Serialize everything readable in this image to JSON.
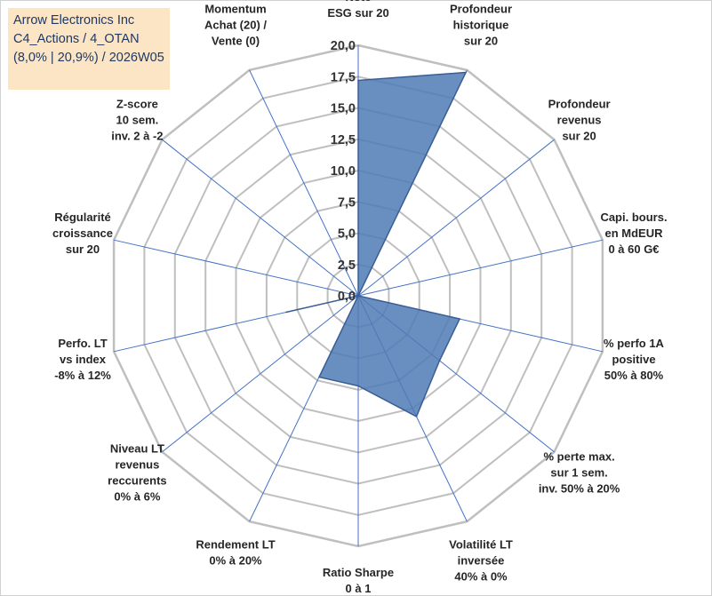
{
  "header": {
    "line1": "Arrow Electronics Inc",
    "line2": "C4_Actions / 4_OTAN",
    "line3": "(8,0% | 20,9%) / 2026W05"
  },
  "colors": {
    "grid": "#bfbfbf",
    "spoke": "#4472c4",
    "fill": "#4f7ab5",
    "fill_stroke": "#3a5e94",
    "title_bg": "#fbe5c4",
    "title_text": "#1f3864"
  },
  "chart_data": {
    "type": "radar",
    "title": "",
    "rmax": 20,
    "ticks": [
      "0,0",
      "2,5",
      "5,0",
      "7,5",
      "10,0",
      "12,5",
      "15,0",
      "17,5",
      "20,0"
    ],
    "axes": [
      {
        "lines": [
          "Note",
          "ESG sur 20"
        ],
        "value": 17.2
      },
      {
        "lines": [
          "Profondeur",
          "historique",
          "sur 20"
        ],
        "value": 19.8
      },
      {
        "lines": [
          "Profondeur",
          "revenus",
          "sur 20"
        ],
        "value": 0.0
      },
      {
        "lines": [
          "Capi. bours.",
          "en MdEUR",
          "0 à 60 G€"
        ],
        "value": 0.0
      },
      {
        "lines": [
          "% perfo 1A",
          "positive",
          "50% à 80%"
        ],
        "value": 8.3
      },
      {
        "lines": [
          "% perte max.",
          "sur 1 sem.",
          "inv. 50% à 20%"
        ],
        "value": 8.3
      },
      {
        "lines": [
          "Volatilité LT",
          "inversée",
          "40% à 0%"
        ],
        "value": 10.7
      },
      {
        "lines": [
          "Ratio Sharpe",
          "0 à 1"
        ],
        "value": 7.2
      },
      {
        "lines": [
          "Rendement LT",
          "0% à 20%"
        ],
        "value": 7.2
      },
      {
        "lines": [
          "Niveau LT",
          "revenus",
          "reccurents",
          "0% à 6%"
        ],
        "value": 0.0
      },
      {
        "lines": [
          "Perfo. LT",
          "vs index",
          "-8% à 12%"
        ],
        "value": 5.9
      },
      {
        "lines": [
          "Régularité",
          "croissance",
          "sur 20"
        ],
        "value": 0.0
      },
      {
        "lines": [
          "Z-score",
          "10 sem.",
          "inv. 2 à -2"
        ],
        "value": 0.0
      },
      {
        "lines": [
          "Momentum",
          "Achat (20) /",
          "Vente (0)"
        ],
        "value": 0.0
      }
    ]
  }
}
